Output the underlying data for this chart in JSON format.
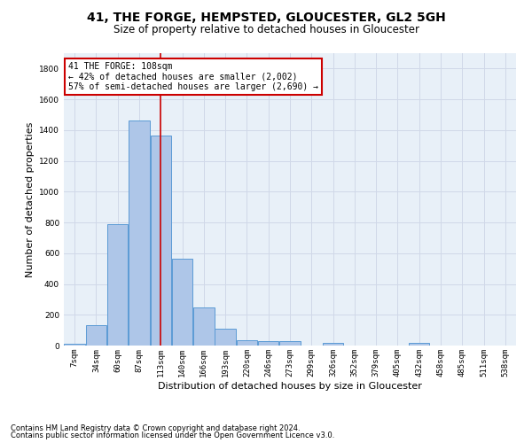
{
  "title1": "41, THE FORGE, HEMPSTED, GLOUCESTER, GL2 5GH",
  "title2": "Size of property relative to detached houses in Gloucester",
  "xlabel": "Distribution of detached houses by size in Gloucester",
  "ylabel": "Number of detached properties",
  "footnote1": "Contains HM Land Registry data © Crown copyright and database right 2024.",
  "footnote2": "Contains public sector information licensed under the Open Government Licence v3.0.",
  "bin_labels": [
    "7sqm",
    "34sqm",
    "60sqm",
    "87sqm",
    "113sqm",
    "140sqm",
    "166sqm",
    "193sqm",
    "220sqm",
    "246sqm",
    "273sqm",
    "299sqm",
    "326sqm",
    "352sqm",
    "379sqm",
    "405sqm",
    "432sqm",
    "458sqm",
    "485sqm",
    "511sqm",
    "538sqm"
  ],
  "bar_values": [
    10,
    130,
    790,
    1465,
    1365,
    565,
    250,
    108,
    35,
    28,
    28,
    0,
    18,
    0,
    0,
    0,
    20,
    0,
    0,
    0,
    0
  ],
  "bar_color": "#aec6e8",
  "bar_edge_color": "#5b9bd5",
  "grid_color": "#d0d8e8",
  "bg_color": "#e8f0f8",
  "vline_color": "#cc0000",
  "annotation_box_color": "#cc0000",
  "ylim": [
    0,
    1900
  ],
  "yticks": [
    0,
    200,
    400,
    600,
    800,
    1000,
    1200,
    1400,
    1600,
    1800
  ],
  "title1_fontsize": 10,
  "title2_fontsize": 8.5,
  "ylabel_fontsize": 8,
  "xlabel_fontsize": 8,
  "tick_fontsize": 6.5,
  "annotation_fontsize": 7,
  "footnote_fontsize": 6
}
